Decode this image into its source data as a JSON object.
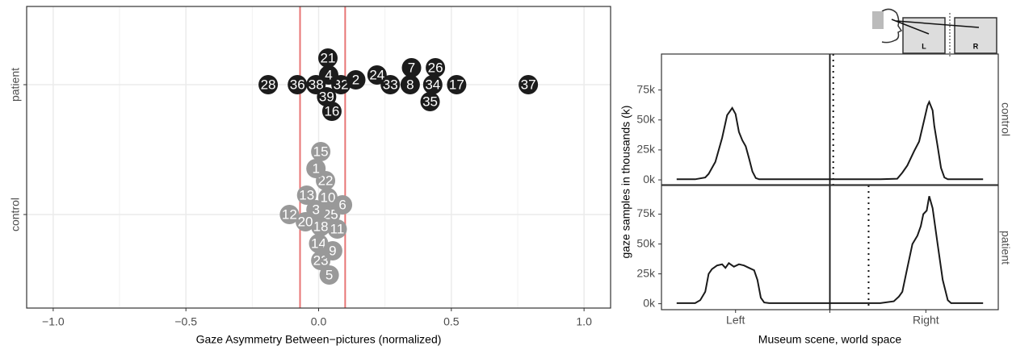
{
  "chart_data": [
    {
      "type": "strip",
      "xlabel": "Gaze Asymmetry Between−pictures (normalized)",
      "xlim": [
        -1.1,
        1.1
      ],
      "xticks": [
        {
          "value": -1,
          "label": "−1.0"
        },
        {
          "value": -0.5,
          "label": "−0.5"
        },
        {
          "value": 0,
          "label": "0.0"
        },
        0.5,
        {
          "value": 1,
          "label": "1.0"
        }
      ],
      "grid": true,
      "vlines": [
        -0.07,
        0.1
      ],
      "vline_color": "#e87575",
      "series": [
        {
          "name": "patient",
          "color": "#1c1c1c",
          "labels": [
            "32",
            "4",
            "34",
            "38",
            "8",
            "28",
            "36",
            "39",
            "2",
            "33",
            "24",
            "7",
            "26",
            "17",
            "37",
            "35",
            "21",
            "16"
          ],
          "values": [
            0.084,
            0.038,
            0.43,
            -0.01,
            0.345,
            -0.19,
            -0.08,
            0.03,
            0.14,
            0.27,
            0.22,
            0.35,
            0.44,
            0.52,
            0.79,
            0.42,
            0.035,
            0.05
          ]
        },
        {
          "name": "control",
          "color": "#999999",
          "labels": [
            "25",
            "10",
            "18",
            "14",
            "3",
            "20",
            "11",
            "12",
            "22",
            "6",
            "13",
            "1",
            "23",
            "15",
            "5",
            "9"
          ],
          "values": [
            0.045,
            0.035,
            0.008,
            0.0,
            -0.01,
            -0.05,
            0.07,
            -0.11,
            0.026,
            0.09,
            -0.045,
            -0.01,
            0.008,
            0.008,
            0.04,
            0.053
          ]
        }
      ]
    },
    {
      "type": "line",
      "xlabel": "Museum scene, world space",
      "ylabel": "gaze samples in thousands (k)",
      "xlim": [
        -1,
        1
      ],
      "xticks": [
        {
          "value": -0.56,
          "label": "Left"
        },
        {
          "value": 0.57,
          "label": "Right"
        }
      ],
      "icon_labels": [
        "L",
        "R"
      ],
      "panels": [
        {
          "name": "control",
          "color": "#1a1a1a",
          "ylim": [
            -4,
            105
          ],
          "yticks": [
            {
              "value": 0,
              "label": "0k"
            },
            {
              "value": 25,
              "label": "25k"
            },
            {
              "value": 50,
              "label": "50k"
            },
            {
              "value": 75,
              "label": "75k"
            }
          ],
          "vlines": [
            {
              "value": 0,
              "style": "solid"
            },
            {
              "value": 0.02,
              "style": "dotted"
            }
          ],
          "x": [
            -0.91,
            -0.8,
            -0.74,
            -0.72,
            -0.68,
            -0.64,
            -0.61,
            -0.58,
            -0.56,
            -0.54,
            -0.52,
            -0.5,
            -0.48,
            -0.46,
            -0.44,
            -0.42,
            0.3,
            0.4,
            0.43,
            0.46,
            0.5,
            0.53,
            0.56,
            0.58,
            0.59,
            0.61,
            0.62,
            0.64,
            0.66,
            0.68,
            0.7,
            0.91
          ],
          "values": [
            0.5,
            0.5,
            2,
            5,
            15,
            35,
            54,
            60,
            55,
            40,
            33,
            28,
            18,
            7,
            1.5,
            0.5,
            0.5,
            1,
            6,
            12,
            24,
            32,
            50,
            62,
            65,
            58,
            45,
            28,
            10,
            2,
            0.5,
            0.5
          ]
        },
        {
          "name": "patient",
          "color": "#1a1a1a",
          "ylim": [
            -5,
            99
          ],
          "yticks": [
            {
              "value": 0,
              "label": "0k"
            },
            {
              "value": 25,
              "label": "25k"
            },
            {
              "value": 50,
              "label": "50k"
            },
            {
              "value": 75,
              "label": "75k"
            }
          ],
          "vlines": [
            {
              "value": 0,
              "style": "solid"
            },
            {
              "value": 0.23,
              "style": "dotted"
            }
          ],
          "x": [
            -0.91,
            -0.8,
            -0.77,
            -0.74,
            -0.72,
            -0.7,
            -0.67,
            -0.64,
            -0.62,
            -0.6,
            -0.57,
            -0.54,
            -0.51,
            -0.48,
            -0.45,
            -0.43,
            -0.41,
            -0.39,
            -0.36,
            0.3,
            0.38,
            0.41,
            0.43,
            0.46,
            0.49,
            0.52,
            0.54,
            0.555,
            0.575,
            0.59,
            0.61,
            0.64,
            0.67,
            0.7,
            0.72,
            0.91
          ],
          "values": [
            0.5,
            0.5,
            3,
            10,
            25,
            29,
            32,
            33,
            30,
            34,
            31,
            33,
            32,
            30,
            28,
            20,
            5,
            1,
            0.5,
            0.5,
            2,
            6,
            10,
            30,
            50,
            57,
            65,
            75,
            78,
            90,
            80,
            50,
            20,
            3,
            0.5,
            0.5
          ]
        }
      ]
    }
  ]
}
